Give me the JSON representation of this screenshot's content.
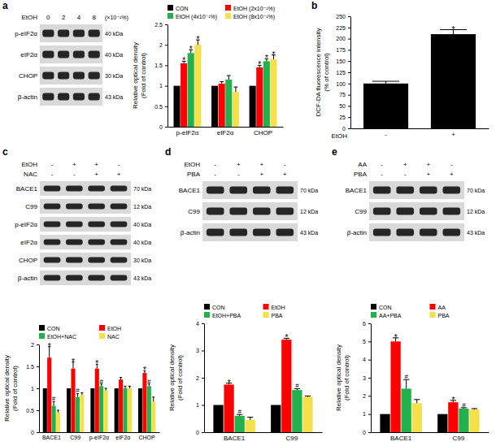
{
  "panel_labels": [
    "a",
    "b",
    "c",
    "d",
    "e"
  ],
  "blots": [
    {
      "treatments": [
        {
          "label": "EtOH",
          "lanes": [
            "0",
            "2",
            "4",
            "8"
          ],
          "unit": "(×10⁻¹%)"
        }
      ],
      "rows": [
        {
          "protein": "p-eIF2α",
          "size": "40 kDa"
        },
        {
          "protein": "eIF2α",
          "size": "40 kDa"
        },
        {
          "protein": "CHOP",
          "size": "30 kDa"
        },
        {
          "protein": "β-actin",
          "size": "43 kDa"
        }
      ]
    },
    {
      "treatments": [
        {
          "label": "EtOH",
          "lanes": [
            "-",
            "+",
            "+",
            "-"
          ]
        },
        {
          "label": "NAC",
          "lanes": [
            "-",
            "-",
            "+",
            "+"
          ]
        }
      ],
      "rows": [
        {
          "protein": "BACE1",
          "size": "70 kDa"
        },
        {
          "protein": "C99",
          "size": "12 kDa"
        },
        {
          "protein": "p-eIF2α",
          "size": "40 kDa"
        },
        {
          "protein": "eIF2α",
          "size": "40 kDa"
        },
        {
          "protein": "CHOP",
          "size": "30 kDa"
        },
        {
          "protein": "β-actin",
          "size": "43 kDa"
        }
      ]
    },
    {
      "treatments": [
        {
          "label": "EtOH",
          "lanes": [
            "-",
            "+",
            "+",
            "-"
          ]
        },
        {
          "label": "PBA",
          "lanes": [
            "-",
            "-",
            "+",
            "+"
          ]
        }
      ],
      "rows": [
        {
          "protein": "BACE1",
          "size": "70 kDa"
        },
        {
          "protein": "C99",
          "size": "12 kDa"
        },
        {
          "protein": "β-actin",
          "size": "43 kDa"
        }
      ]
    },
    {
      "treatments": [
        {
          "label": "AA",
          "lanes": [
            "-",
            "+",
            "+",
            "-"
          ]
        },
        {
          "label": "PBA",
          "lanes": [
            "-",
            "-",
            "+",
            "+"
          ]
        }
      ],
      "rows": [
        {
          "protein": "BACE1",
          "size": "70 kDa"
        },
        {
          "protein": "C99",
          "size": "12 kDa"
        },
        {
          "protein": "β-actin",
          "size": "43 kDa"
        }
      ]
    }
  ],
  "chart_data": [
    {
      "type": "bar",
      "y_label": [
        "Relative optical density",
        "(Fold of control)"
      ],
      "categories": [
        "p-eIF2α",
        "eIF2α",
        "CHOP"
      ],
      "series": [
        {
          "name": "CON",
          "color": "#000000",
          "values": [
            1,
            1,
            1
          ],
          "errors": [
            null,
            null,
            null
          ],
          "significance": [
            null,
            null,
            null
          ]
        },
        {
          "name": "EtOH (2x10⁻¹%)",
          "color": "#ff0000",
          "values": [
            1.55,
            1.05,
            1.45
          ],
          "errors": [
            0.05,
            0.05,
            0.05
          ],
          "significance": [
            "*",
            null,
            "*"
          ]
        },
        {
          "name": "EtOH (4x10⁻¹%)",
          "color": "#22b14c",
          "values": [
            1.8,
            1.15,
            1.6
          ],
          "errors": [
            0.08,
            0.1,
            0.06
          ],
          "significance": [
            "*",
            null,
            "*"
          ]
        },
        {
          "name": "EtOH (8x10⁻¹%)",
          "color": "#f5e04a",
          "values": [
            2.0,
            0.85,
            1.65
          ],
          "errors": [
            0.12,
            0.12,
            0.1
          ],
          "significance": [
            "*",
            null,
            "*"
          ]
        }
      ],
      "ylim": [
        0,
        2.5
      ],
      "yticks": [
        0,
        0.5,
        1,
        1.5,
        2,
        2.5
      ],
      "legend": "top-right"
    },
    {
      "type": "bar",
      "y_label": [
        "DCF-DA fluorescence intensity",
        "(% of control)"
      ],
      "x_label": "EtOH",
      "categories": [
        "-",
        "+"
      ],
      "series": [
        {
          "color": "#000000",
          "values": [
            100,
            210
          ],
          "errors": [
            5,
            10
          ],
          "significance": [
            null,
            "*"
          ]
        }
      ],
      "ylim": [
        0,
        250
      ],
      "yticks": [
        0,
        25,
        50,
        75,
        100,
        125,
        150,
        175,
        200,
        225,
        250
      ]
    },
    {
      "type": "bar",
      "y_label": [
        "Relative optical density",
        "(Fold of control)"
      ],
      "categories": [
        "BACE1",
        "C99",
        "p-eIF2α",
        "eIF2α",
        "CHOP"
      ],
      "series": [
        {
          "name": "CON",
          "color": "#000000",
          "values": [
            1,
            1,
            1,
            1,
            1
          ],
          "errors": [
            null,
            null,
            null,
            null,
            null
          ],
          "significance": [
            null,
            null,
            null,
            null,
            null
          ]
        },
        {
          "name": "EtOH",
          "color": "#ff0000",
          "values": [
            1.7,
            1.45,
            1.45,
            1.2,
            1.35
          ],
          "errors": [
            0.25,
            0.15,
            0.1,
            0.05,
            0.05
          ],
          "significance": [
            "*",
            "*",
            "*",
            null,
            "*"
          ]
        },
        {
          "name": "EtOH+NAC",
          "color": "#22b14c",
          "values": [
            0.6,
            0.8,
            1.05,
            1.0,
            1.05
          ],
          "errors": [
            0.1,
            0.08,
            0.05,
            0.05,
            0.05
          ],
          "significance": [
            "#",
            "#",
            "#",
            null,
            "#"
          ]
        },
        {
          "name": "NAC",
          "color": "#f5e04a",
          "values": [
            0.45,
            0.85,
            0.95,
            1.0,
            0.7
          ],
          "errors": [
            0.05,
            0.05,
            0.05,
            0.05,
            0.1
          ],
          "significance": [
            null,
            null,
            null,
            null,
            null
          ]
        }
      ],
      "ylim": [
        0,
        2
      ],
      "yticks": [
        0,
        0.5,
        1,
        1.5,
        2
      ],
      "legend": "top-right"
    },
    {
      "type": "bar",
      "y_label": [
        "Relative optical density",
        "(Fold of control)"
      ],
      "categories": [
        "BACE1",
        "C99"
      ],
      "series": [
        {
          "name": "CON",
          "color": "#000000",
          "values": [
            1,
            1
          ],
          "errors": [
            null,
            null
          ],
          "significance": [
            null,
            null
          ]
        },
        {
          "name": "EtOH",
          "color": "#ff0000",
          "values": [
            1.75,
            3.4
          ],
          "errors": [
            0.05,
            0.05
          ],
          "significance": [
            "*",
            "*"
          ]
        },
        {
          "name": "EtOH+PBA",
          "color": "#22b14c",
          "values": [
            0.6,
            1.55
          ],
          "errors": [
            0.05,
            0.05
          ],
          "significance": [
            "#",
            "#"
          ]
        },
        {
          "name": "PBA",
          "color": "#f5e04a",
          "values": [
            0.45,
            1.3
          ],
          "errors": [
            0.1,
            0.03
          ],
          "significance": [
            null,
            null
          ]
        }
      ],
      "ylim": [
        0,
        4
      ],
      "yticks": [
        0,
        1,
        2,
        3,
        4
      ],
      "legend": "top-right"
    },
    {
      "type": "bar",
      "y_label": [
        "Relative optical density",
        "(Fold of control)"
      ],
      "categories": [
        "BACE1",
        "C99"
      ],
      "series": [
        {
          "name": "CON",
          "color": "#000000",
          "values": [
            1,
            1
          ],
          "errors": [
            null,
            null
          ],
          "significance": [
            null,
            null
          ]
        },
        {
          "name": "AA",
          "color": "#ff0000",
          "values": [
            5.0,
            1.65
          ],
          "errors": [
            0.2,
            0.1
          ],
          "significance": [
            "*",
            "*"
          ]
        },
        {
          "name": "AA+PBA",
          "color": "#22b14c",
          "values": [
            2.4,
            1.3
          ],
          "errors": [
            0.5,
            0.05
          ],
          "significance": [
            "#",
            "#"
          ]
        },
        {
          "name": "PBA",
          "color": "#f5e04a",
          "values": [
            1.6,
            1.25
          ],
          "errors": [
            0.2,
            0.05
          ],
          "significance": [
            null,
            null
          ]
        }
      ],
      "ylim": [
        0,
        6
      ],
      "yticks": [
        0,
        1,
        2,
        3,
        4,
        5,
        6
      ],
      "legend": "top-right"
    }
  ]
}
